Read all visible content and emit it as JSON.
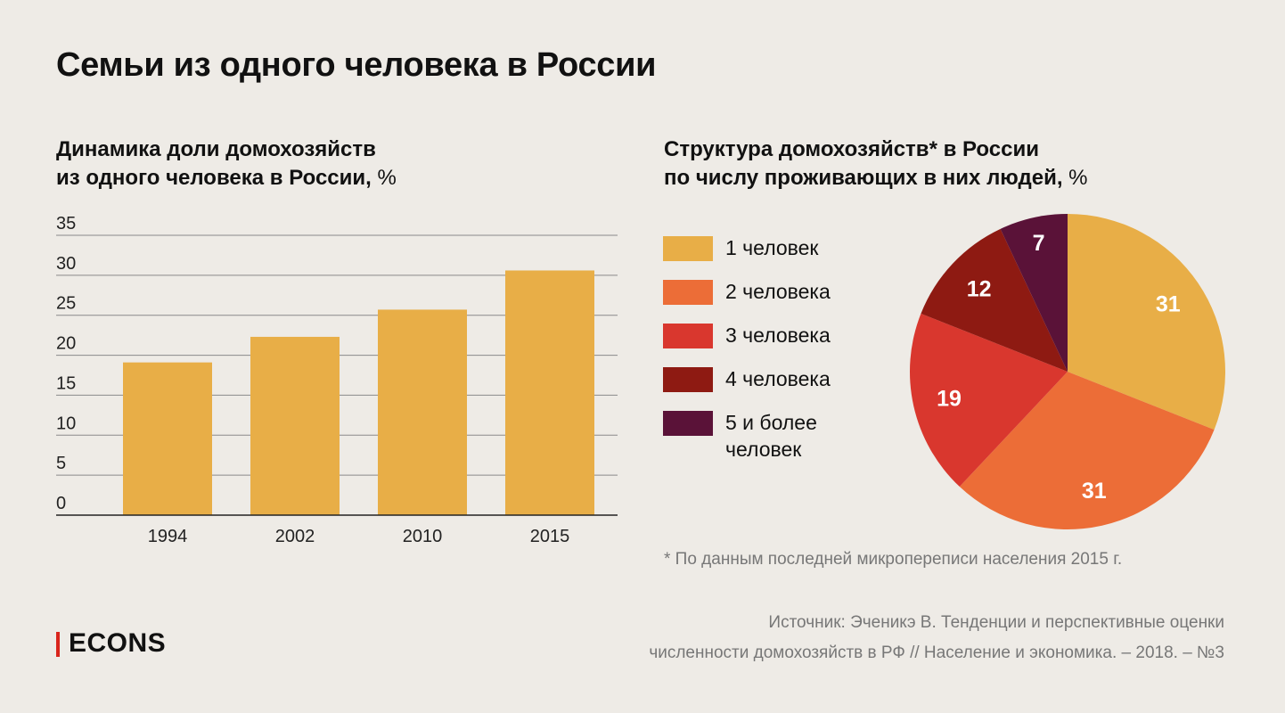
{
  "title": "Семьи из одного человека в России",
  "colors": {
    "bar": "#e8ae47",
    "gridline": "#8a8a8a",
    "axis": "#222222",
    "brand_bar": "#d9251c"
  },
  "left_chart": {
    "title_line1": "Динамика доли домохозяйств",
    "title_line2": "из одного человека в России,",
    "unit": "%"
  },
  "right_chart": {
    "title_line1": "Структура домохозяйств* в России",
    "title_line2": "по числу проживающих в них людей,",
    "unit": "%"
  },
  "chart_data": [
    {
      "type": "bar",
      "title": "Динамика доли домохозяйств из одного человека в России, %",
      "categories": [
        "1994",
        "2002",
        "2010",
        "2015"
      ],
      "values": [
        19.1,
        22.3,
        25.7,
        30.6
      ],
      "ylim": [
        0,
        35
      ],
      "yticks": [
        0,
        5,
        10,
        15,
        20,
        25,
        30,
        35
      ],
      "grid": true
    },
    {
      "type": "pie",
      "title": "Структура домохозяйств* в России по числу проживающих в них людей, %",
      "slices": [
        {
          "label": "1 человек",
          "value": 31,
          "color": "#e8ae47"
        },
        {
          "label": "2 человека",
          "value": 31,
          "color": "#ec6d37"
        },
        {
          "label": "3 человека",
          "value": 19,
          "color": "#d9372e"
        },
        {
          "label": "4 человека",
          "value": 12,
          "color": "#8e1a12"
        },
        {
          "label": "5 и более человек",
          "value": 7,
          "color": "#5a1238"
        }
      ],
      "legend_position": "left"
    }
  ],
  "footnote": "* По данным последней микропереписи населения 2015 г.",
  "source_line1": "Источник: Эченикэ В. Тенденции и перспективные оценки",
  "source_line2": "численности домохозяйств в РФ // Население и экономика. – 2018. – №3",
  "logo": "ECONS"
}
